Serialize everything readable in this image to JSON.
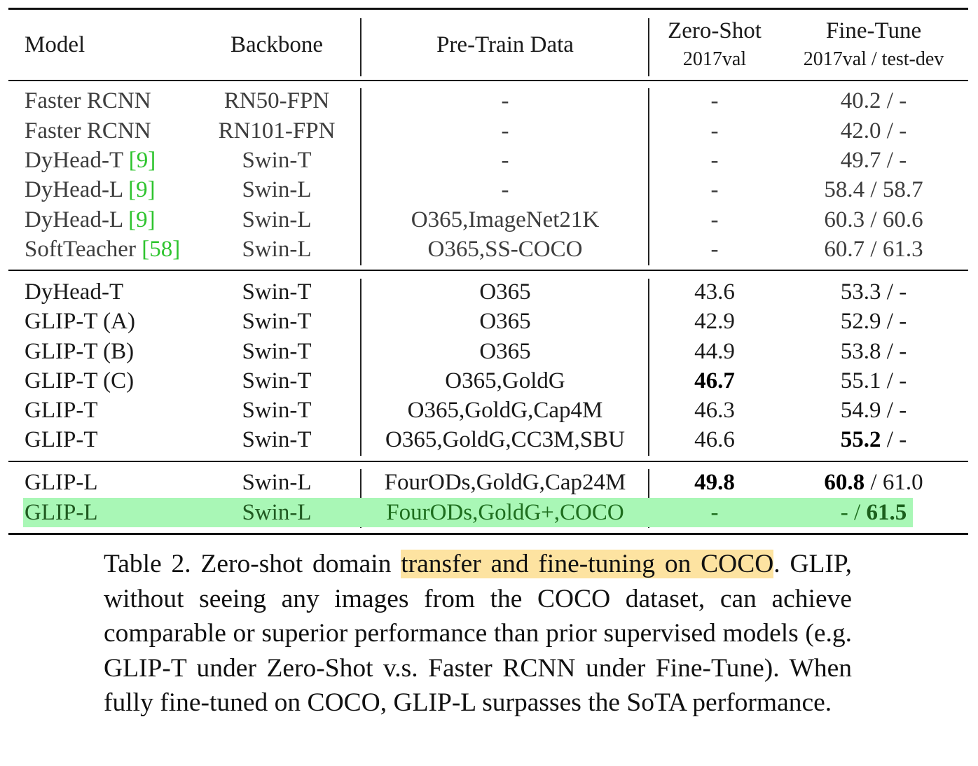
{
  "header": {
    "model": "Model",
    "backbone": "Backbone",
    "pretrain": "Pre-Train Data",
    "zeroshot": "Zero-Shot",
    "zeroshot_sub": "2017val",
    "finetune": "Fine-Tune",
    "finetune_sub": "2017val / test-dev"
  },
  "group1": [
    {
      "model": "Faster RCNN",
      "cite": "",
      "backbone": "RN50-FPN",
      "data": "-",
      "zs": "-",
      "ft": "40.2 / -"
    },
    {
      "model": "Faster RCNN",
      "cite": "",
      "backbone": "RN101-FPN",
      "data": "-",
      "zs": "-",
      "ft": "42.0 / -"
    },
    {
      "model": "DyHead-T ",
      "cite": "[9]",
      "backbone": "Swin-T",
      "data": "-",
      "zs": "-",
      "ft": "49.7 / -"
    },
    {
      "model": "DyHead-L ",
      "cite": "[9]",
      "backbone": "Swin-L",
      "data": "-",
      "zs": "-",
      "ft": "58.4 / 58.7"
    },
    {
      "model": "DyHead-L ",
      "cite": "[9]",
      "backbone": "Swin-L",
      "data": "O365,ImageNet21K",
      "zs": "-",
      "ft": "60.3 / 60.6"
    },
    {
      "model": "SoftTeacher ",
      "cite": "[58]",
      "backbone": "Swin-L",
      "data": "O365,SS-COCO",
      "zs": "-",
      "ft": "60.7 / 61.3"
    }
  ],
  "group2": [
    {
      "model": "DyHead-T",
      "backbone": "Swin-T",
      "data": "O365",
      "zs": "43.6",
      "ft": "53.3 / -"
    },
    {
      "model": "GLIP-T (A)",
      "backbone": "Swin-T",
      "data": "O365",
      "zs": "42.9",
      "ft": "52.9 / -"
    },
    {
      "model": "GLIP-T (B)",
      "backbone": "Swin-T",
      "data": "O365",
      "zs": "44.9",
      "ft": "53.8 / -"
    },
    {
      "model": "GLIP-T (C)",
      "backbone": "Swin-T",
      "data": "O365,GoldG",
      "zs": "46.7",
      "ft": "55.1 / -"
    },
    {
      "model": "GLIP-T",
      "backbone": "Swin-T",
      "data": "O365,GoldG,Cap4M",
      "zs": "46.3",
      "ft": "54.9 / -"
    },
    {
      "model": "GLIP-T",
      "backbone": "Swin-T",
      "data": "O365,GoldG,CC3M,SBU",
      "zs": "46.6",
      "ft_bold": "55.2",
      "ft_rest": " / -"
    }
  ],
  "group3": [
    {
      "model": "GLIP-L",
      "backbone": "Swin-L",
      "data": "FourODs,GoldG,Cap24M",
      "zs": "49.8",
      "ft_bold": "60.8",
      "ft_rest": " / 61.0"
    },
    {
      "model": "GLIP-L",
      "backbone": "Swin-L",
      "data": "FourODs,GoldG+,COCO",
      "zs": "-",
      "ft_pre": "- / ",
      "ft_bold": "61.5"
    }
  ],
  "caption": {
    "lead": "Table 2.  Zero-shot domain ",
    "highlight": "transfer and fine-tuning on COCO",
    "rest": ". GLIP, without seeing any images from the COCO dataset, can achieve comparable or superior performance than prior supervised models (e.g.  GLIP-T under Zero-Shot v.s.  Faster RCNN under Fine-Tune).  When fully fine-tuned on COCO, GLIP-L surpasses the SoTA performance."
  },
  "colors": {
    "citation": "#2ec42e",
    "row_highlight": "#a9f7b6",
    "caption_highlight": "#fde3a1"
  }
}
